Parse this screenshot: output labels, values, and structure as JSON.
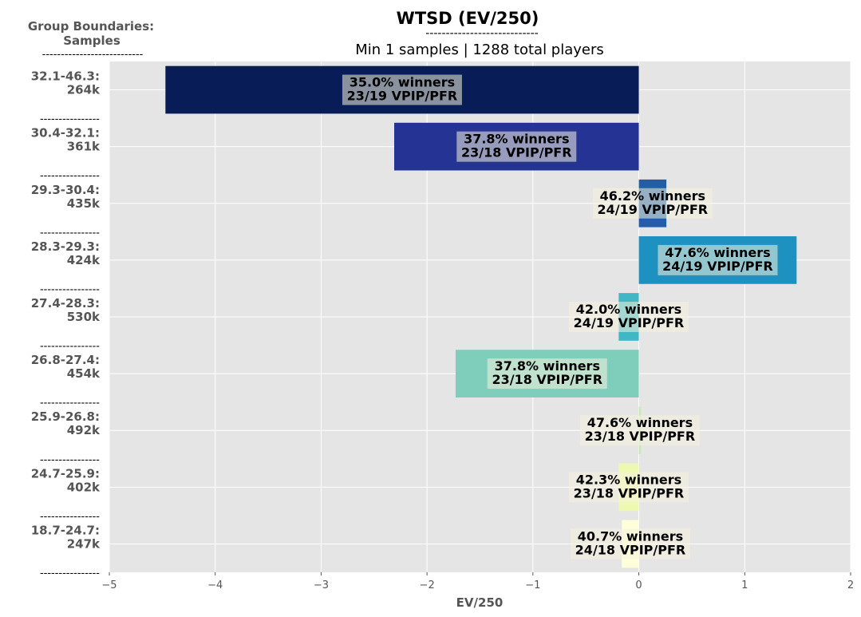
{
  "header": {
    "title": "WTSD (EV/250)",
    "title_underline": "----------------------------",
    "subtitle": "Min 1 samples | 1288 total players",
    "group_heading_line1": "Group Boundaries:",
    "group_heading_line2": "Samples",
    "group_heading_underline": "---------------------------",
    "row_separator": "----------------"
  },
  "colors": {
    "background": "#ffffff",
    "plot_background": "#e5e5e5",
    "grid": "#ffffff",
    "label_text": "#555555"
  },
  "chart_data": {
    "type": "bar",
    "orientation": "horizontal",
    "xlabel": "EV/250",
    "xlim": [
      -5,
      2
    ],
    "xticks": [
      -5,
      -4,
      -3,
      -2,
      -1,
      0,
      1,
      2
    ],
    "xtick_labels": [
      "−5",
      "−4",
      "−3",
      "−2",
      "−1",
      "0",
      "1",
      "2"
    ],
    "grid": true,
    "bars": [
      {
        "group": "32.1-46.3:",
        "samples": "264k",
        "value": -4.47,
        "winners": "35.0% winners",
        "vpip_pfr": "23/19 VPIP/PFR",
        "color": "#081d58"
      },
      {
        "group": "30.4-32.1:",
        "samples": "361k",
        "value": -2.31,
        "winners": "37.8% winners",
        "vpip_pfr": "23/18 VPIP/PFR",
        "color": "#253494"
      },
      {
        "group": "29.3-30.4:",
        "samples": "435k",
        "value": 0.26,
        "winners": "46.2% winners",
        "vpip_pfr": "24/19 VPIP/PFR",
        "color": "#225ea8"
      },
      {
        "group": "28.3-29.3:",
        "samples": "424k",
        "value": 1.49,
        "winners": "47.6% winners",
        "vpip_pfr": "24/19 VPIP/PFR",
        "color": "#1d91c0"
      },
      {
        "group": "27.4-28.3:",
        "samples": "530k",
        "value": -0.19,
        "winners": "42.0% winners",
        "vpip_pfr": "24/19 VPIP/PFR",
        "color": "#41b6c4"
      },
      {
        "group": "26.8-27.4:",
        "samples": "454k",
        "value": -1.73,
        "winners": "37.8% winners",
        "vpip_pfr": "23/18 VPIP/PFR",
        "color": "#7fcdbb"
      },
      {
        "group": "25.9-26.8:",
        "samples": "492k",
        "value": 0.02,
        "winners": "47.6% winners",
        "vpip_pfr": "23/18 VPIP/PFR",
        "color": "#c7e9b4"
      },
      {
        "group": "24.7-25.9:",
        "samples": "402k",
        "value": -0.19,
        "winners": "42.3% winners",
        "vpip_pfr": "23/18 VPIP/PFR",
        "color": "#edf8b1"
      },
      {
        "group": "18.7-24.7:",
        "samples": "247k",
        "value": -0.16,
        "winners": "40.7% winners",
        "vpip_pfr": "24/18 VPIP/PFR",
        "color": "#ffffd9"
      }
    ]
  }
}
